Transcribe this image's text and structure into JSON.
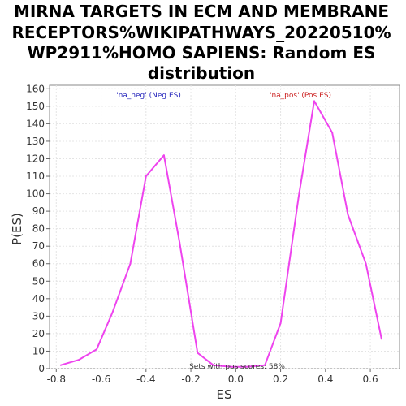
{
  "chart_data": {
    "type": "line",
    "title_lines": [
      "MIRNA TARGETS IN ECM AND MEMBRANE",
      "RECEPTORS%WIKIPATHWAYS_20220510%",
      "WP2911%HOMO SAPIENS: Random ES",
      "distribution"
    ],
    "xlabel": "ES",
    "ylabel": "P(ES)",
    "xlim": [
      -0.83,
      0.73
    ],
    "ylim": [
      0,
      162
    ],
    "x_ticks": [
      "-0.8",
      "-0.6",
      "-0.4",
      "-0.2",
      "0.0",
      "0.2",
      "0.4",
      "0.6"
    ],
    "y_ticks": [
      "0",
      "10",
      "20",
      "30",
      "40",
      "50",
      "60",
      "70",
      "80",
      "90",
      "100",
      "110",
      "120",
      "130",
      "140",
      "150",
      "160"
    ],
    "grid": true,
    "series": [
      {
        "color": "#ee44ee",
        "x": [
          -0.78,
          -0.7,
          -0.62,
          -0.55,
          -0.47,
          -0.4,
          -0.32,
          -0.25,
          -0.17,
          -0.1,
          -0.02,
          0.05,
          0.13,
          0.2,
          0.28,
          0.35,
          0.43,
          0.5,
          0.58,
          0.65
        ],
        "y": [
          2,
          5,
          11,
          32,
          60,
          110,
          122,
          72,
          9,
          2,
          1,
          1,
          2,
          26,
          98,
          153,
          135,
          88,
          60,
          17
        ]
      }
    ],
    "annotations": {
      "neg_label": "'na_neg' (Neg ES)",
      "pos_label": "'na_pos' (Pos ES)",
      "footer": "Sets with pos scores: 58%"
    },
    "colors": {
      "neg": "#2222bb",
      "pos": "#cc2222",
      "line": "#ee44ee"
    }
  }
}
